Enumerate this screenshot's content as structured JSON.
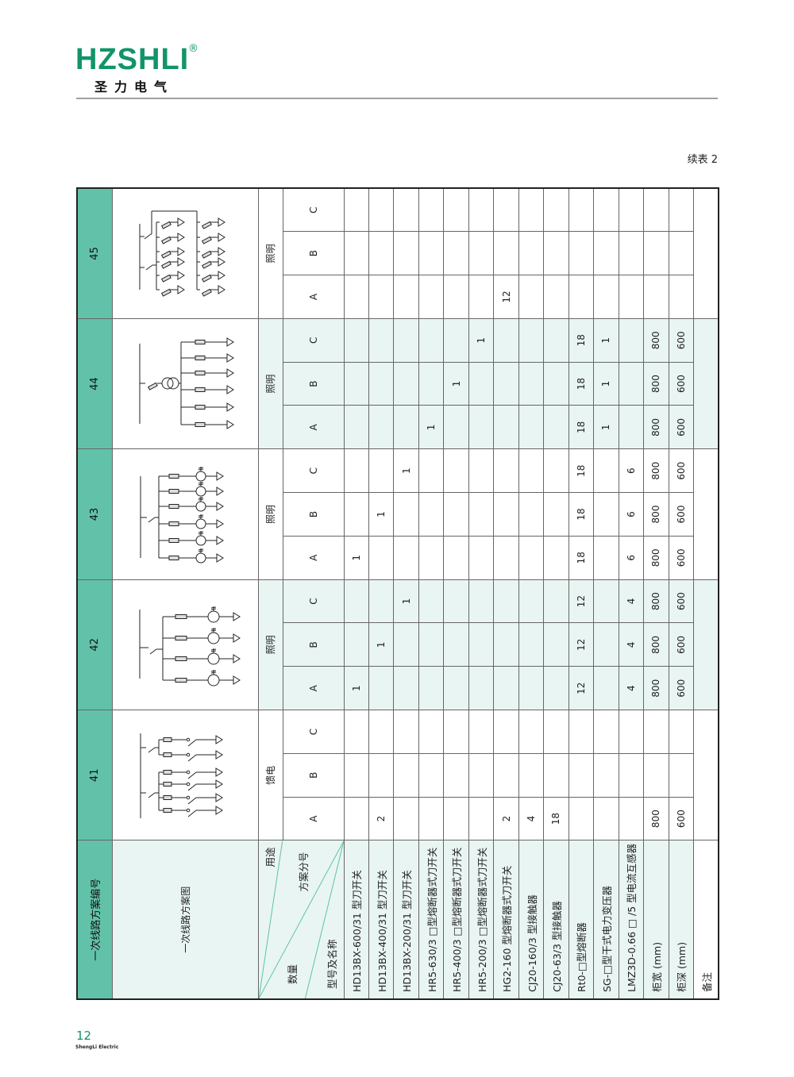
{
  "header": {
    "brand": "HZSHLI",
    "registered": "®",
    "brand_cn": "圣力电气",
    "continued": "续表 2"
  },
  "colors": {
    "brand_green": "#12946b",
    "header_teal": "#62c2a9",
    "light_teal": "#e9f5f2"
  },
  "table": {
    "label_header": "一次线路方案编号",
    "diagram_label": "一次线路方案图",
    "use_label": "用途",
    "sub_label": "方案分号",
    "qty_label": "数量",
    "model_label": "型号及名称",
    "rows": [
      "HD13BX-600/31 型刀开关",
      "HD13BX-400/31 型刀开关",
      "HD13BX-200/31 型刀开关",
      "HR5-630/3 □型熔断器式刀开关",
      "HR5-400/3 □型熔断器式刀开关",
      "HR5-200/3 □型熔断器式刀开关",
      "HG2-160 型熔断器式刀开关",
      "CJ20-160/3 型接触器",
      "CJ20-63/3 型接触器",
      "Rt0-□型熔断器",
      "SG-□型干式电力变压器",
      "LMZ3D-0.66 □ /5 型电流互感器",
      "柜宽 (mm)",
      "柜深 (mm)",
      "备注"
    ],
    "schemes": [
      {
        "number": "41",
        "use": "馈电",
        "subs": [
          "A",
          "B",
          "C"
        ],
        "diagram_icon": "feeder-diagram",
        "values": [
          [
            "",
            "",
            ""
          ],
          [
            "2",
            "",
            ""
          ],
          [
            "",
            "",
            ""
          ],
          [
            "",
            "",
            ""
          ],
          [
            "",
            "",
            ""
          ],
          [
            "",
            "",
            ""
          ],
          [
            "2",
            "",
            ""
          ],
          [
            "4",
            "",
            ""
          ],
          [
            "18",
            "",
            ""
          ],
          [
            "",
            "",
            ""
          ],
          [
            "",
            "",
            ""
          ],
          [
            "",
            "",
            ""
          ],
          [
            "800",
            "",
            ""
          ],
          [
            "600",
            "",
            ""
          ],
          [
            ""
          ]
        ]
      },
      {
        "number": "42",
        "use": "照明",
        "subs": [
          "A",
          "B",
          "C"
        ],
        "diagram_icon": "lighting-ct-diagram",
        "values": [
          [
            "1",
            "",
            ""
          ],
          [
            "",
            "1",
            ""
          ],
          [
            "",
            "",
            "1"
          ],
          [
            "",
            "",
            ""
          ],
          [
            "",
            "",
            ""
          ],
          [
            "",
            "",
            ""
          ],
          [
            "",
            "",
            ""
          ],
          [
            "",
            "",
            ""
          ],
          [
            "",
            "",
            ""
          ],
          [
            "12",
            "12",
            "12"
          ],
          [
            "",
            "",
            ""
          ],
          [
            "4",
            "4",
            "4"
          ],
          [
            "800",
            "800",
            "800"
          ],
          [
            "600",
            "600",
            "600"
          ],
          [
            ""
          ]
        ]
      },
      {
        "number": "43",
        "use": "照明",
        "subs": [
          "A",
          "B",
          "C"
        ],
        "diagram_icon": "lighting-ct-diagram",
        "values": [
          [
            "1",
            "",
            ""
          ],
          [
            "",
            "1",
            ""
          ],
          [
            "",
            "",
            "1"
          ],
          [
            "",
            "",
            ""
          ],
          [
            "",
            "",
            ""
          ],
          [
            "",
            "",
            ""
          ],
          [
            "",
            "",
            ""
          ],
          [
            "",
            "",
            ""
          ],
          [
            "",
            "",
            ""
          ],
          [
            "18",
            "18",
            "18"
          ],
          [
            "",
            "",
            ""
          ],
          [
            "6",
            "6",
            "6"
          ],
          [
            "800",
            "800",
            "800"
          ],
          [
            "600",
            "600",
            "600"
          ],
          [
            ""
          ]
        ]
      },
      {
        "number": "44",
        "use": "照明",
        "subs": [
          "A",
          "B",
          "C"
        ],
        "diagram_icon": "lighting-transformer-diagram",
        "values": [
          [
            "",
            "",
            ""
          ],
          [
            "",
            "",
            ""
          ],
          [
            "",
            "",
            ""
          ],
          [
            "1",
            "",
            ""
          ],
          [
            "",
            "1",
            ""
          ],
          [
            "",
            "",
            "1"
          ],
          [
            "",
            "",
            ""
          ],
          [
            "",
            "",
            ""
          ],
          [
            "",
            "",
            ""
          ],
          [
            "18",
            "18",
            "18"
          ],
          [
            "1",
            "1",
            "1"
          ],
          [
            "",
            "",
            ""
          ],
          [
            "800",
            "800",
            "800"
          ],
          [
            "600",
            "600",
            "600"
          ],
          [
            ""
          ]
        ]
      },
      {
        "number": "45",
        "use": "照明",
        "subs": [
          "A",
          "B",
          "C"
        ],
        "diagram_icon": "lighting-fuse-diagram",
        "values": [
          [
            "",
            "",
            ""
          ],
          [
            "",
            "",
            ""
          ],
          [
            "",
            "",
            ""
          ],
          [
            "",
            "",
            ""
          ],
          [
            "",
            "",
            ""
          ],
          [
            "",
            "",
            ""
          ],
          [
            "12",
            "",
            ""
          ],
          [
            "",
            "",
            ""
          ],
          [
            "",
            "",
            ""
          ],
          [
            "",
            "",
            ""
          ],
          [
            "",
            "",
            ""
          ],
          [
            "",
            "",
            ""
          ],
          [
            "",
            "",
            ""
          ],
          [
            "",
            "",
            ""
          ],
          [
            ""
          ]
        ]
      }
    ]
  },
  "footer": {
    "page": "12",
    "company": "ShengLi Electric"
  }
}
